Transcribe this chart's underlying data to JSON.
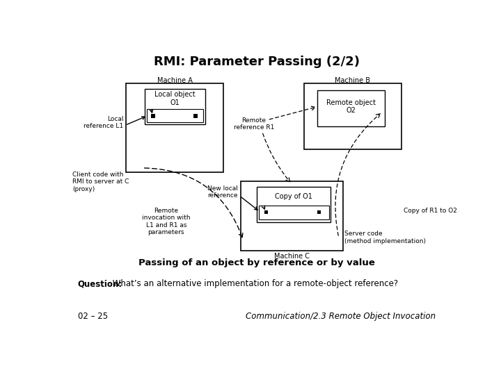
{
  "title": "RMI: Parameter Passing (2/2)",
  "subtitle": "Passing of an object by reference or by value",
  "question_bold": "Question:",
  "question_text": " What’s an alternative implementation for a remote-object reference?",
  "footer_left": "02 – 25",
  "footer_right": "Communication/2.3 Remote Object Invocation",
  "bg_color": "#ffffff",
  "machine_a_label": "Machine A",
  "machine_b_label": "Machine B",
  "machine_c_label": "Machine C",
  "local_obj_label": "Local object\nO1",
  "remote_obj_label": "Remote object\nO2",
  "copy_obj_label": "Copy of O1",
  "local_ref_label": "Local\nreference L1",
  "remote_ref_label": "Remote\nreference R1",
  "new_local_ref_label": "New local\nreference",
  "client_code_label": "Client code with\nRMI to server at C\n(proxy)",
  "remote_invoc_label": "Remote\ninvocation with\nL1 and R1 as\nparameters",
  "copy_r1_label": "Copy of R1 to O2",
  "server_code_label": "Server code\n(method implementation)"
}
